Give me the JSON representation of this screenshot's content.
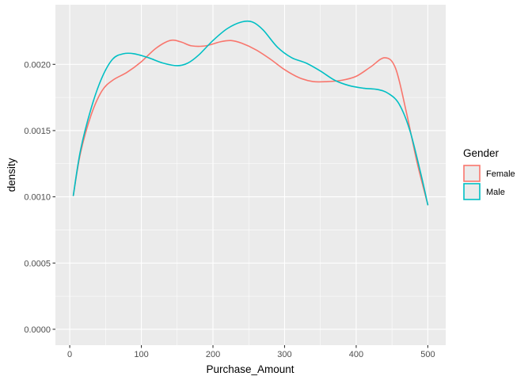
{
  "chart_data": {
    "type": "line",
    "xlabel": "Purchase_Amount",
    "ylabel": "density",
    "xlim": [
      -20,
      525
    ],
    "ylim": [
      -0.00012,
      0.00245
    ],
    "x_ticks": [
      0,
      100,
      200,
      300,
      400,
      500
    ],
    "x_tick_labels": [
      "0",
      "100",
      "200",
      "300",
      "400",
      "500"
    ],
    "y_ticks": [
      0,
      0.0005,
      0.001,
      0.0015,
      0.002
    ],
    "y_tick_labels": [
      "0.0000",
      "0.0005",
      "0.0010",
      "0.0015",
      "0.0020"
    ],
    "grid": true,
    "legend": {
      "title": "Gender",
      "position": "right"
    },
    "series": [
      {
        "name": "Female",
        "color": "#F8766D",
        "x": [
          5,
          15,
          30,
          45,
          60,
          80,
          100,
          120,
          140,
          155,
          170,
          190,
          210,
          225,
          240,
          260,
          280,
          300,
          320,
          340,
          360,
          380,
          400,
          420,
          440,
          455,
          470,
          485,
          500
        ],
        "y": [
          0.00101,
          0.00133,
          0.00162,
          0.0018,
          0.00188,
          0.00194,
          0.00202,
          0.00212,
          0.00218,
          0.00217,
          0.00214,
          0.00214,
          0.00217,
          0.00218,
          0.00216,
          0.00211,
          0.00204,
          0.00196,
          0.0019,
          0.00187,
          0.00187,
          0.00188,
          0.00191,
          0.00198,
          0.00205,
          0.00197,
          0.00164,
          0.00126,
          0.00094
        ]
      },
      {
        "name": "Male",
        "color": "#00BFC4",
        "x": [
          5,
          15,
          30,
          45,
          60,
          75,
          90,
          110,
          130,
          150,
          165,
          180,
          200,
          220,
          240,
          255,
          270,
          290,
          310,
          330,
          350,
          370,
          390,
          410,
          430,
          445,
          460,
          475,
          490,
          500
        ],
        "y": [
          0.00101,
          0.00135,
          0.00167,
          0.0019,
          0.00204,
          0.00208,
          0.00208,
          0.00205,
          0.00201,
          0.00199,
          0.00201,
          0.00207,
          0.00218,
          0.00227,
          0.00232,
          0.00232,
          0.00226,
          0.00213,
          0.00205,
          0.00201,
          0.00195,
          0.00188,
          0.00184,
          0.00182,
          0.00181,
          0.00178,
          0.0017,
          0.0015,
          0.00118,
          0.00094
        ]
      }
    ]
  }
}
